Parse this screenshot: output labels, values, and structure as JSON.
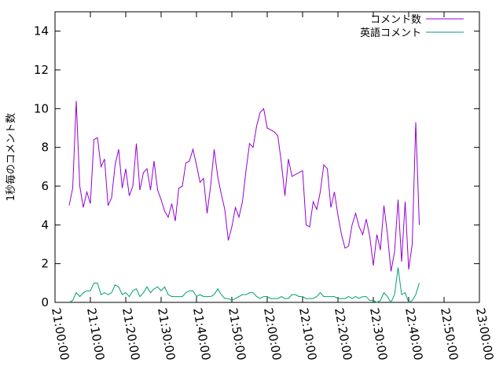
{
  "chart_data": {
    "type": "line",
    "title": "",
    "ylabel": "1秒毎のコメント数",
    "xlabel": "",
    "ylim": [
      0,
      15
    ],
    "yticks": [
      0,
      2,
      4,
      6,
      8,
      10,
      12,
      14
    ],
    "xlim": [
      "21:00:00",
      "23:00:00"
    ],
    "xticks": [
      "21:00:00",
      "21:10:00",
      "21:20:00",
      "21:30:00",
      "21:40:00",
      "21:50:00",
      "22:00:00",
      "22:10:00",
      "22:20:00",
      "22:30:00",
      "22:40:00",
      "22:50:00",
      "23:00:00"
    ],
    "legend_position": "top-right",
    "grid": false,
    "series": [
      {
        "name": "コメント数",
        "color": "#9400d3",
        "points": [
          [
            "21:04:00",
            5.0
          ],
          [
            "21:05:00",
            5.9
          ],
          [
            "21:06:00",
            10.4
          ],
          [
            "21:07:00",
            6.0
          ],
          [
            "21:08:00",
            4.9
          ],
          [
            "21:09:00",
            5.7
          ],
          [
            "21:10:00",
            5.1
          ],
          [
            "21:11:00",
            8.4
          ],
          [
            "21:12:00",
            8.5
          ],
          [
            "21:13:00",
            7.0
          ],
          [
            "21:14:00",
            7.4
          ],
          [
            "21:15:00",
            5.0
          ],
          [
            "21:16:00",
            5.4
          ],
          [
            "21:17:00",
            7.1
          ],
          [
            "21:18:00",
            7.9
          ],
          [
            "21:19:00",
            5.9
          ],
          [
            "21:20:00",
            6.9
          ],
          [
            "21:21:00",
            5.5
          ],
          [
            "21:22:00",
            6.0
          ],
          [
            "21:23:00",
            8.2
          ],
          [
            "21:24:00",
            5.8
          ],
          [
            "21:25:00",
            6.7
          ],
          [
            "21:26:00",
            6.9
          ],
          [
            "21:27:00",
            5.8
          ],
          [
            "21:28:00",
            7.3
          ],
          [
            "21:29:00",
            5.8
          ],
          [
            "21:30:00",
            5.3
          ],
          [
            "21:31:00",
            4.7
          ],
          [
            "21:32:00",
            4.4
          ],
          [
            "21:33:00",
            5.1
          ],
          [
            "21:34:00",
            4.2
          ],
          [
            "21:35:00",
            5.9
          ],
          [
            "21:36:00",
            6.0
          ],
          [
            "21:37:00",
            7.2
          ],
          [
            "21:38:00",
            7.3
          ],
          [
            "21:39:00",
            7.9
          ],
          [
            "21:40:00",
            7.1
          ],
          [
            "21:41:00",
            6.2
          ],
          [
            "21:42:00",
            6.4
          ],
          [
            "21:43:00",
            4.6
          ],
          [
            "21:44:00",
            6.0
          ],
          [
            "21:45:00",
            7.9
          ],
          [
            "21:46:00",
            6.5
          ],
          [
            "21:47:00",
            5.6
          ],
          [
            "21:48:00",
            4.8
          ],
          [
            "21:49:00",
            3.2
          ],
          [
            "21:50:00",
            3.9
          ],
          [
            "21:51:00",
            4.9
          ],
          [
            "21:52:00",
            4.4
          ],
          [
            "21:53:00",
            5.2
          ],
          [
            "21:54:00",
            6.8
          ],
          [
            "21:55:00",
            8.2
          ],
          [
            "21:56:00",
            8.0
          ],
          [
            "21:57:00",
            9.1
          ],
          [
            "21:58:00",
            9.8
          ],
          [
            "21:59:00",
            10.0
          ],
          [
            "22:00:00",
            9.0
          ],
          [
            "22:01:00",
            8.9
          ],
          [
            "22:02:00",
            8.8
          ],
          [
            "22:03:00",
            8.6
          ],
          [
            "22:04:00",
            7.2
          ],
          [
            "22:05:00",
            5.5
          ],
          [
            "22:06:00",
            7.4
          ],
          [
            "22:07:00",
            6.5
          ],
          [
            "22:08:00",
            6.6
          ],
          [
            "22:09:00",
            6.7
          ],
          [
            "22:10:00",
            6.8
          ],
          [
            "22:11:00",
            4.0
          ],
          [
            "22:12:00",
            3.9
          ],
          [
            "22:13:00",
            5.2
          ],
          [
            "22:14:00",
            4.8
          ],
          [
            "22:15:00",
            5.7
          ],
          [
            "22:16:00",
            7.1
          ],
          [
            "22:17:00",
            6.9
          ],
          [
            "22:18:00",
            4.9
          ],
          [
            "22:19:00",
            5.7
          ],
          [
            "22:20:00",
            4.5
          ],
          [
            "22:21:00",
            3.5
          ],
          [
            "22:22:00",
            2.8
          ],
          [
            "22:23:00",
            2.9
          ],
          [
            "22:24:00",
            4.0
          ],
          [
            "22:25:00",
            4.6
          ],
          [
            "22:26:00",
            3.9
          ],
          [
            "22:27:00",
            3.5
          ],
          [
            "22:28:00",
            4.3
          ],
          [
            "22:29:00",
            3.4
          ],
          [
            "22:30:00",
            1.9
          ],
          [
            "22:31:00",
            3.5
          ],
          [
            "22:32:00",
            2.7
          ],
          [
            "22:33:00",
            5.0
          ],
          [
            "22:34:00",
            3.5
          ],
          [
            "22:35:00",
            1.6
          ],
          [
            "22:36:00",
            2.6
          ],
          [
            "22:37:00",
            5.3
          ],
          [
            "22:38:00",
            2.1
          ],
          [
            "22:39:00",
            5.2
          ],
          [
            "22:40:00",
            1.7
          ],
          [
            "22:41:00",
            3.0
          ],
          [
            "22:42:00",
            9.3
          ],
          [
            "22:43:00",
            4.0
          ]
        ]
      },
      {
        "name": "英語コメント",
        "color": "#009e73",
        "points": [
          [
            "21:04:00",
            0.0
          ],
          [
            "21:05:00",
            0.1
          ],
          [
            "21:06:00",
            0.5
          ],
          [
            "21:07:00",
            0.3
          ],
          [
            "21:08:00",
            0.5
          ],
          [
            "21:09:00",
            0.6
          ],
          [
            "21:10:00",
            0.6
          ],
          [
            "21:11:00",
            1.0
          ],
          [
            "21:12:00",
            1.0
          ],
          [
            "21:13:00",
            0.4
          ],
          [
            "21:14:00",
            0.5
          ],
          [
            "21:15:00",
            0.4
          ],
          [
            "21:16:00",
            0.5
          ],
          [
            "21:17:00",
            0.9
          ],
          [
            "21:18:00",
            0.8
          ],
          [
            "21:19:00",
            0.4
          ],
          [
            "21:20:00",
            0.5
          ],
          [
            "21:21:00",
            0.3
          ],
          [
            "21:22:00",
            0.6
          ],
          [
            "21:23:00",
            0.7
          ],
          [
            "21:24:00",
            0.3
          ],
          [
            "21:25:00",
            0.5
          ],
          [
            "21:26:00",
            0.8
          ],
          [
            "21:27:00",
            0.5
          ],
          [
            "21:28:00",
            0.7
          ],
          [
            "21:29:00",
            0.8
          ],
          [
            "21:30:00",
            0.6
          ],
          [
            "21:31:00",
            0.8
          ],
          [
            "21:32:00",
            0.4
          ],
          [
            "21:33:00",
            0.3
          ],
          [
            "21:34:00",
            0.3
          ],
          [
            "21:35:00",
            0.3
          ],
          [
            "21:36:00",
            0.3
          ],
          [
            "21:37:00",
            0.5
          ],
          [
            "21:38:00",
            0.6
          ],
          [
            "21:39:00",
            0.6
          ],
          [
            "21:40:00",
            0.3
          ],
          [
            "21:41:00",
            0.4
          ],
          [
            "21:42:00",
            0.3
          ],
          [
            "21:43:00",
            0.3
          ],
          [
            "21:44:00",
            0.3
          ],
          [
            "21:45:00",
            0.4
          ],
          [
            "21:46:00",
            0.7
          ],
          [
            "21:47:00",
            0.4
          ],
          [
            "21:48:00",
            0.2
          ],
          [
            "21:49:00",
            0.2
          ],
          [
            "21:50:00",
            0.1
          ],
          [
            "21:51:00",
            0.2
          ],
          [
            "21:52:00",
            0.3
          ],
          [
            "21:53:00",
            0.4
          ],
          [
            "21:54:00",
            0.4
          ],
          [
            "21:55:00",
            0.5
          ],
          [
            "21:56:00",
            0.5
          ],
          [
            "21:57:00",
            0.3
          ],
          [
            "21:58:00",
            0.2
          ],
          [
            "21:59:00",
            0.3
          ],
          [
            "22:00:00",
            0.3
          ],
          [
            "22:01:00",
            0.2
          ],
          [
            "22:02:00",
            0.2
          ],
          [
            "22:03:00",
            0.2
          ],
          [
            "22:04:00",
            0.3
          ],
          [
            "22:05:00",
            0.2
          ],
          [
            "22:06:00",
            0.2
          ],
          [
            "22:07:00",
            0.4
          ],
          [
            "22:08:00",
            0.4
          ],
          [
            "22:09:00",
            0.3
          ],
          [
            "22:10:00",
            0.3
          ],
          [
            "22:11:00",
            0.2
          ],
          [
            "22:12:00",
            0.2
          ],
          [
            "22:13:00",
            0.2
          ],
          [
            "22:14:00",
            0.3
          ],
          [
            "22:15:00",
            0.5
          ],
          [
            "22:16:00",
            0.3
          ],
          [
            "22:17:00",
            0.3
          ],
          [
            "22:18:00",
            0.3
          ],
          [
            "22:19:00",
            0.3
          ],
          [
            "22:20:00",
            0.2
          ],
          [
            "22:21:00",
            0.2
          ],
          [
            "22:22:00",
            0.2
          ],
          [
            "22:23:00",
            0.3
          ],
          [
            "22:24:00",
            0.2
          ],
          [
            "22:25:00",
            0.3
          ],
          [
            "22:26:00",
            0.2
          ],
          [
            "22:27:00",
            0.3
          ],
          [
            "22:28:00",
            0.3
          ],
          [
            "22:29:00",
            0.1
          ],
          [
            "22:30:00",
            0.1
          ],
          [
            "22:31:00",
            0.0
          ],
          [
            "22:32:00",
            0.1
          ],
          [
            "22:33:00",
            0.5
          ],
          [
            "22:34:00",
            0.3
          ],
          [
            "22:35:00",
            0.0
          ],
          [
            "22:36:00",
            0.4
          ],
          [
            "22:37:00",
            1.8
          ],
          [
            "22:38:00",
            0.4
          ],
          [
            "22:39:00",
            0.5
          ],
          [
            "22:40:00",
            0.0
          ],
          [
            "22:41:00",
            0.1
          ],
          [
            "22:42:00",
            0.4
          ],
          [
            "22:43:00",
            1.0
          ]
        ]
      }
    ]
  }
}
